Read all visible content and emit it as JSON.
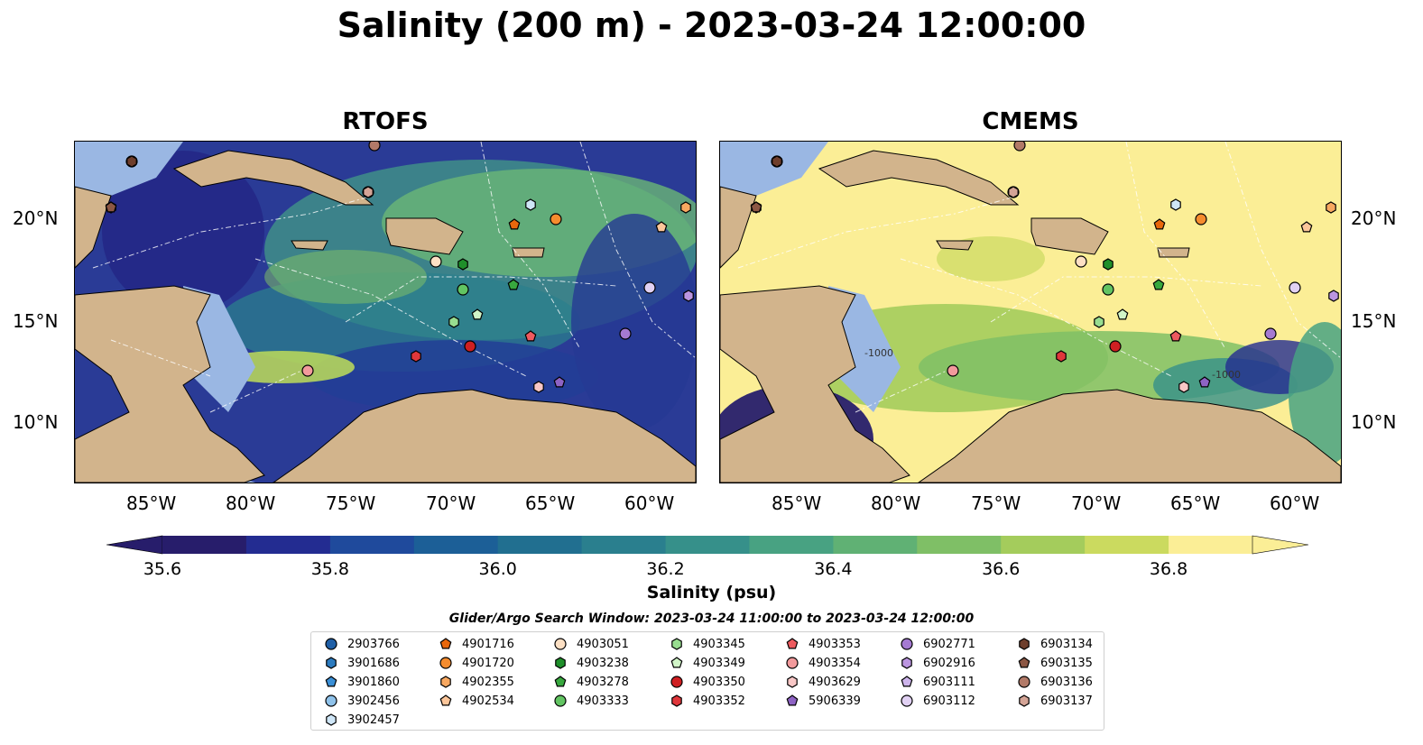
{
  "title": "Salinity (200 m) - 2023-03-24 12:00:00",
  "panels": [
    {
      "title": "RTOFS",
      "key": "rtofs"
    },
    {
      "title": "CMEMS",
      "key": "cmems"
    }
  ],
  "axes": {
    "lon_labels": [
      "85°W",
      "80°W",
      "75°W",
      "70°W",
      "65°W",
      "60°W"
    ],
    "lat_labels": [
      "20°N",
      "15°N",
      "10°N"
    ]
  },
  "colorbar": {
    "label": "Salinity (psu)",
    "ticks": [
      "35.6",
      "35.8",
      "36.0",
      "36.2",
      "36.4",
      "36.6",
      "36.8"
    ],
    "range": [
      35.6,
      36.9
    ],
    "colors": [
      "#271d6b",
      "#232c91",
      "#1f4a9c",
      "#1c5f97",
      "#216f90",
      "#2a7f8e",
      "#36908a",
      "#48a282",
      "#60b174",
      "#7fbf66",
      "#a4cc5c",
      "#cbda5f",
      "#fbee96"
    ]
  },
  "contour_labels": [
    "-1000",
    "-1000"
  ],
  "legend": {
    "title": "Glider/Argo Search Window: 2023-03-24 11:00:00 to 2023-03-24 12:00:00",
    "columns": [
      [
        {
          "id": "2903766",
          "color": "#1f5fa6",
          "marker": "circle"
        },
        {
          "id": "3901686",
          "color": "#2c7bbf",
          "marker": "hexagon"
        },
        {
          "id": "3901860",
          "color": "#3a8fd6",
          "marker": "pentagon"
        },
        {
          "id": "3902456",
          "color": "#8fc2ea",
          "marker": "circle"
        },
        {
          "id": "3902457",
          "color": "#cfe6f7",
          "marker": "hexagon"
        }
      ],
      [
        {
          "id": "4901716",
          "color": "#e8670c",
          "marker": "pentagon"
        },
        {
          "id": "4901720",
          "color": "#f58c2e",
          "marker": "circle"
        },
        {
          "id": "4902355",
          "color": "#f8a860",
          "marker": "hexagon"
        },
        {
          "id": "4902534",
          "color": "#fcc69a",
          "marker": "pentagon"
        }
      ],
      [
        {
          "id": "4903051",
          "color": "#fde0c4",
          "marker": "circle"
        },
        {
          "id": "4903238",
          "color": "#1f8f2a",
          "marker": "hexagon"
        },
        {
          "id": "4903278",
          "color": "#38a83e",
          "marker": "pentagon"
        },
        {
          "id": "4903333",
          "color": "#62c462",
          "marker": "circle"
        }
      ],
      [
        {
          "id": "4903345",
          "color": "#98dd90",
          "marker": "hexagon"
        },
        {
          "id": "4903349",
          "color": "#d1f5c8",
          "marker": "pentagon"
        },
        {
          "id": "4903350",
          "color": "#cf1f22",
          "marker": "circle"
        },
        {
          "id": "4903352",
          "color": "#e0373b",
          "marker": "hexagon"
        }
      ],
      [
        {
          "id": "4903353",
          "color": "#ee5a5f",
          "marker": "pentagon"
        },
        {
          "id": "4903354",
          "color": "#f29a9c",
          "marker": "circle"
        },
        {
          "id": "4903629",
          "color": "#f8c7c6",
          "marker": "hexagon"
        },
        {
          "id": "5906339",
          "color": "#8e63c4",
          "marker": "pentagon"
        }
      ],
      [
        {
          "id": "6902771",
          "color": "#a57ad2",
          "marker": "circle"
        },
        {
          "id": "6902916",
          "color": "#bb95e0",
          "marker": "hexagon"
        },
        {
          "id": "6903111",
          "color": "#cdb4eb",
          "marker": "pentagon"
        },
        {
          "id": "6903112",
          "color": "#e1d1f3",
          "marker": "circle"
        }
      ],
      [
        {
          "id": "6903134",
          "color": "#6e3e2c",
          "marker": "hexagon"
        },
        {
          "id": "6903135",
          "color": "#8c5744",
          "marker": "pentagon"
        },
        {
          "id": "6903136",
          "color": "#b27a68",
          "marker": "circle"
        },
        {
          "id": "6903137",
          "color": "#d4a496",
          "marker": "hexagon"
        }
      ]
    ]
  }
}
